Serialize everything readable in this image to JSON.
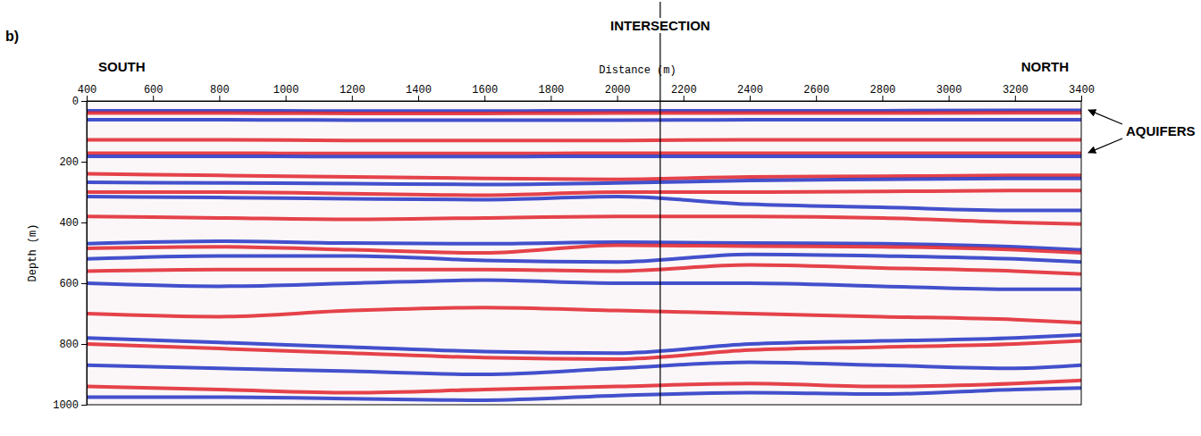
{
  "chart_data": {
    "type": "seismic_section",
    "panel_label": "b)",
    "direction_labels": [
      "SOUTH",
      "NORTH"
    ],
    "x_label": "Distance (m)",
    "y_label": "Depth (m)",
    "xlim": [
      400,
      3400
    ],
    "xticks": [
      400,
      600,
      800,
      1000,
      1200,
      1400,
      1600,
      1800,
      2000,
      2200,
      2400,
      2600,
      2800,
      3000,
      3200,
      3400
    ],
    "ylim": [
      0,
      1000
    ],
    "yticks": [
      0,
      200,
      400,
      600,
      800,
      1000
    ],
    "intersection": {
      "text": "INTERSECTION",
      "x": 2130
    },
    "annotation": {
      "text": "AQUIFERS",
      "depths": [
        30,
        170
      ]
    },
    "x": [
      400,
      800,
      1200,
      1600,
      2000,
      2400,
      2800,
      3200,
      3400
    ],
    "series": [
      {
        "color": "#2233c4",
        "values": [
          32,
          32,
          33,
          33,
          32,
          32,
          32,
          31,
          31
        ]
      },
      {
        "color": "#e0222c",
        "values": [
          40,
          40,
          41,
          41,
          40,
          40,
          40,
          39,
          39
        ]
      },
      {
        "color": "#2233c4",
        "values": [
          62,
          62,
          63,
          63,
          63,
          62,
          62,
          62,
          62
        ]
      },
      {
        "color": "#e0222c",
        "values": [
          128,
          128,
          130,
          130,
          130,
          128,
          128,
          128,
          128
        ]
      },
      {
        "color": "#e0222c",
        "values": [
          172,
          172,
          173,
          173,
          172,
          172,
          172,
          172,
          172
        ]
      },
      {
        "color": "#2233c4",
        "values": [
          182,
          182,
          183,
          183,
          182,
          182,
          182,
          182,
          182
        ]
      },
      {
        "color": "#e0222c",
        "values": [
          240,
          245,
          250,
          255,
          258,
          250,
          248,
          245,
          245
        ]
      },
      {
        "color": "#2233c4",
        "values": [
          268,
          270,
          272,
          275,
          270,
          262,
          258,
          255,
          255
        ]
      },
      {
        "color": "#e0222c",
        "values": [
          300,
          300,
          305,
          310,
          300,
          300,
          298,
          295,
          295
        ]
      },
      {
        "color": "#2233c4",
        "values": [
          315,
          318,
          322,
          325,
          315,
          340,
          350,
          360,
          360
        ]
      },
      {
        "color": "#e0222c",
        "values": [
          380,
          385,
          390,
          385,
          380,
          380,
          385,
          400,
          405
        ]
      },
      {
        "color": "#2233c4",
        "values": [
          470,
          462,
          468,
          470,
          465,
          468,
          470,
          480,
          490
        ]
      },
      {
        "color": "#e0222c",
        "values": [
          485,
          480,
          490,
          500,
          475,
          478,
          480,
          490,
          500
        ]
      },
      {
        "color": "#2233c4",
        "values": [
          520,
          510,
          510,
          525,
          530,
          505,
          510,
          520,
          530
        ]
      },
      {
        "color": "#e0222c",
        "values": [
          560,
          555,
          555,
          555,
          560,
          540,
          550,
          560,
          570
        ]
      },
      {
        "color": "#2233c4",
        "values": [
          600,
          610,
          600,
          590,
          600,
          600,
          610,
          620,
          620
        ]
      },
      {
        "color": "#e0222c",
        "values": [
          700,
          710,
          690,
          680,
          690,
          700,
          710,
          720,
          730
        ]
      },
      {
        "color": "#2233c4",
        "values": [
          780,
          795,
          810,
          825,
          830,
          800,
          790,
          780,
          770
        ]
      },
      {
        "color": "#e0222c",
        "values": [
          800,
          815,
          830,
          845,
          850,
          820,
          810,
          800,
          790
        ]
      },
      {
        "color": "#2233c4",
        "values": [
          870,
          880,
          890,
          900,
          880,
          860,
          870,
          880,
          870
        ]
      },
      {
        "color": "#e0222c",
        "values": [
          940,
          950,
          960,
          950,
          940,
          930,
          940,
          930,
          920
        ]
      },
      {
        "color": "#2233c4",
        "values": [
          975,
          975,
          980,
          985,
          970,
          960,
          965,
          950,
          945
        ]
      }
    ]
  }
}
